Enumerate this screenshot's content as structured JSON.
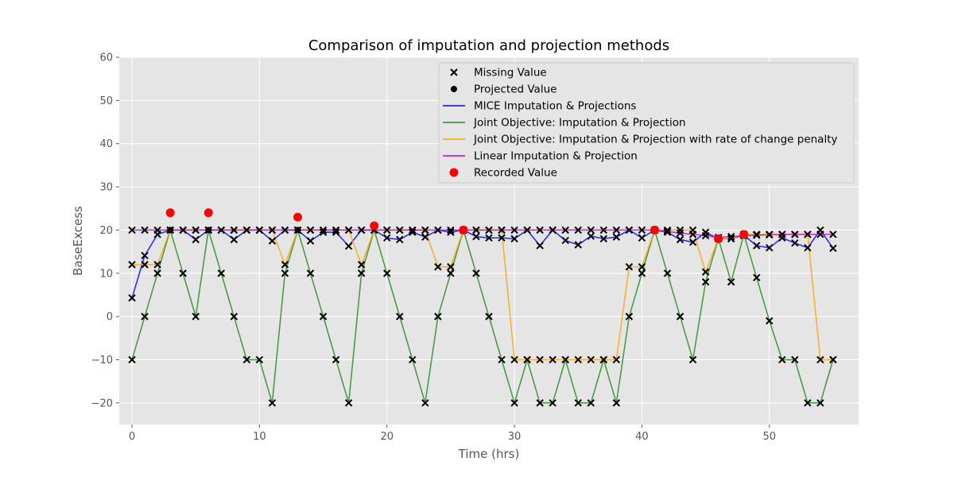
{
  "chart_data": {
    "type": "line",
    "title": "Comparison of imputation and projection methods",
    "xlabel": "Time (hrs)",
    "ylabel": "BaseExcess",
    "xlim": [
      -1,
      57
    ],
    "ylim": [
      -25,
      60
    ],
    "xticks": [
      0,
      10,
      20,
      30,
      40,
      50
    ],
    "yticks": [
      -20,
      -10,
      0,
      10,
      20,
      30,
      40,
      50,
      60
    ],
    "x": [
      0,
      1,
      2,
      3,
      4,
      5,
      6,
      7,
      8,
      9,
      10,
      11,
      12,
      13,
      14,
      15,
      16,
      17,
      18,
      19,
      20,
      21,
      22,
      23,
      24,
      25,
      26,
      27,
      28,
      29,
      30,
      31,
      32,
      33,
      34,
      35,
      36,
      37,
      38,
      39,
      40,
      41,
      42,
      43,
      44,
      45,
      46,
      47,
      48,
      49,
      50,
      51,
      52,
      53,
      54,
      55
    ],
    "series": [
      {
        "name": "MICE Imputation & Projections",
        "color": "#0000ff",
        "values": [
          4.3,
          14.1,
          19.0,
          20.0,
          20.0,
          17.8,
          20.0,
          20.0,
          17.8,
          20.0,
          20.0,
          17.5,
          20.0,
          20.0,
          17.5,
          19.5,
          19.5,
          16.3,
          20.0,
          20.0,
          18.2,
          17.8,
          19.5,
          18.4,
          20.0,
          19.5,
          20.0,
          18.5,
          18.2,
          18.2,
          18.0,
          20.0,
          16.4,
          20.0,
          17.6,
          16.6,
          18.6,
          18.0,
          18.4,
          20.0,
          18.2,
          20.0,
          19.5,
          17.8,
          17.2,
          19.5,
          18.0,
          18.0,
          18.8,
          16.4,
          15.9,
          18.2,
          17.0,
          15.9,
          20.0,
          15.8
        ]
      },
      {
        "name": "Joint Objective: Imputation & Projection",
        "color": "#228b22",
        "values": [
          -10,
          0,
          10,
          20,
          10,
          0,
          20,
          10,
          0,
          -10,
          -10,
          -20,
          10,
          20,
          10,
          0,
          -10,
          -20,
          10,
          20,
          10,
          0,
          -10,
          -20,
          0,
          10,
          20,
          10,
          0,
          -10,
          -20,
          -10,
          -20,
          -20,
          -10,
          -20,
          -20,
          -10,
          -20,
          0,
          10,
          20,
          10,
          0,
          -10,
          8,
          18,
          8,
          19,
          9,
          -1,
          -10,
          -10,
          -20,
          -20,
          -10
        ]
      },
      {
        "name": "Joint Objective: Imputation & Projection with rate of change penalty",
        "color": "#ffa500",
        "values": [
          12,
          12,
          12,
          20,
          20,
          20,
          20,
          20,
          20,
          20,
          20,
          20,
          12,
          20,
          20,
          20,
          20,
          20,
          12,
          20,
          20,
          20,
          20,
          20,
          11.5,
          11.5,
          20,
          20,
          20,
          20,
          -10,
          -10,
          -10,
          -10,
          -10,
          -10,
          -10,
          -10,
          -10,
          11.5,
          11.5,
          20,
          20,
          20,
          20,
          10.3,
          18,
          18,
          19,
          19,
          19,
          19,
          19,
          19,
          -10,
          -10
        ]
      },
      {
        "name": "Linear Imputation & Projection",
        "color": "#cc00cc",
        "values": [
          20.0,
          20.0,
          20.0,
          20.0,
          20.0,
          20.0,
          20.0,
          20.0,
          20.0,
          20.0,
          20.0,
          20.0,
          20.0,
          20.0,
          20.0,
          20.0,
          20.0,
          20.0,
          20.0,
          20.0,
          20.0,
          20.0,
          20.0,
          20.0,
          20.0,
          20.0,
          20.0,
          20.0,
          20.0,
          20.0,
          20.0,
          20.0,
          20.0,
          20.0,
          20.0,
          20.0,
          20.0,
          20.0,
          20.0,
          20.0,
          20.0,
          20.0,
          19.7,
          19.3,
          19.0,
          18.7,
          18.3,
          18.5,
          18.7,
          18.8,
          18.9,
          19.0,
          19.0,
          19.0,
          19.0,
          19.0
        ]
      }
    ],
    "missing_values": {
      "name": "Missing Value",
      "marker": "x",
      "color": "#000000",
      "x": [
        0,
        0,
        0,
        0,
        1,
        1,
        1,
        1,
        2,
        2,
        2,
        2,
        3,
        3,
        3,
        3,
        4,
        4,
        4,
        4,
        5,
        5,
        5,
        5,
        6,
        6,
        6,
        6,
        7,
        7,
        7,
        7,
        8,
        8,
        8,
        8,
        9,
        9,
        9,
        9,
        10,
        10,
        10,
        10,
        11,
        11,
        11,
        11,
        12,
        12,
        12,
        12,
        13,
        13,
        13,
        13,
        14,
        14,
        14,
        14,
        15,
        15,
        15,
        15,
        16,
        16,
        16,
        16,
        17,
        17,
        17,
        17,
        18,
        18,
        18,
        18,
        19,
        19,
        19,
        19,
        20,
        20,
        20,
        20,
        21,
        21,
        21,
        21,
        22,
        22,
        22,
        22,
        23,
        23,
        23,
        23,
        24,
        24,
        24,
        24,
        25,
        25,
        25,
        25,
        26,
        26,
        26,
        26,
        27,
        27,
        27,
        27,
        28,
        28,
        28,
        28,
        29,
        29,
        29,
        29,
        30,
        30,
        30,
        30,
        31,
        31,
        31,
        31,
        32,
        32,
        32,
        32,
        33,
        33,
        33,
        33,
        34,
        34,
        34,
        34,
        35,
        35,
        35,
        35,
        36,
        36,
        36,
        36,
        37,
        37,
        37,
        37,
        38,
        38,
        38,
        38,
        39,
        39,
        39,
        39,
        40,
        40,
        40,
        40,
        41,
        41,
        41,
        41,
        42,
        42,
        42,
        42,
        43,
        43,
        43,
        43,
        44,
        44,
        44,
        44,
        45,
        45,
        45,
        45,
        46,
        46,
        46,
        46,
        47,
        47,
        47,
        47,
        48,
        48,
        48,
        48,
        49,
        49,
        49,
        49,
        50,
        50,
        50,
        50,
        51,
        51,
        51,
        51,
        52,
        52,
        52,
        52,
        53,
        53,
        53,
        53,
        54,
        54,
        54,
        54,
        55,
        55,
        55,
        55
      ],
      "y": [
        4.3,
        -10,
        12,
        20,
        14.1,
        0,
        12,
        20,
        19.0,
        10,
        12,
        20,
        20.0,
        20,
        20,
        20,
        20.0,
        10,
        20,
        20,
        17.8,
        0,
        20,
        20,
        20.0,
        20,
        20,
        20,
        20.0,
        10,
        20,
        20,
        17.8,
        0,
        20,
        20,
        20.0,
        -10,
        20,
        20,
        20.0,
        -10,
        20,
        20,
        17.5,
        -20,
        20,
        20,
        20.0,
        10,
        12,
        20,
        20.0,
        20,
        20,
        20,
        17.5,
        10,
        20,
        20,
        19.5,
        0,
        20,
        20,
        19.5,
        -10,
        20,
        20,
        16.3,
        -20,
        20,
        20,
        20.0,
        10,
        12,
        20,
        20.0,
        20,
        20,
        20,
        18.2,
        10,
        20,
        20,
        17.8,
        0,
        20,
        20,
        19.5,
        -10,
        20,
        20,
        18.4,
        -20,
        20,
        20,
        20.0,
        0,
        11.5,
        20,
        19.5,
        10,
        11.5,
        20,
        20.0,
        20,
        20,
        20,
        18.5,
        10,
        20,
        20,
        18.2,
        0,
        20,
        20,
        18.2,
        -10,
        20,
        20,
        18.0,
        -20,
        -10,
        20,
        20.0,
        -10,
        -10,
        20,
        16.4,
        -20,
        -10,
        20,
        20.0,
        -20,
        -10,
        20,
        17.6,
        -10,
        -10,
        20,
        16.6,
        -20,
        -10,
        20,
        18.6,
        -20,
        -10,
        20,
        18.0,
        -10,
        -10,
        20,
        18.4,
        -20,
        -10,
        20,
        20.0,
        0,
        11.5,
        20,
        18.2,
        10,
        11.5,
        20,
        20.0,
        20,
        20,
        20,
        19.5,
        10,
        20,
        19.7,
        17.8,
        0,
        20,
        19.3,
        17.2,
        -10,
        20,
        19.0,
        19.5,
        8,
        10.3,
        18.7,
        18.0,
        18,
        18,
        18.3,
        18.0,
        8,
        18,
        18.5,
        18.8,
        19,
        19,
        18.7,
        16.4,
        9,
        19,
        18.8,
        15.9,
        -1,
        19,
        18.9,
        18.2,
        -10,
        19,
        19.0,
        17.0,
        -10,
        19,
        19.0,
        15.9,
        -20,
        19,
        19.0,
        20.0,
        -20,
        -10,
        19.0,
        15.8,
        -10,
        -10,
        19.0
      ]
    },
    "projected_values": {
      "name": "Projected Value",
      "marker": "o",
      "color": "#000000",
      "x": [
        3,
        6,
        13
      ],
      "y": [
        20,
        20,
        20
      ]
    },
    "recorded_values": {
      "name": "Recorded Value",
      "marker": "o",
      "color": "#ff0000",
      "x": [
        3,
        6,
        13,
        19,
        26,
        41,
        46,
        48
      ],
      "y": [
        24,
        24,
        23,
        21,
        20,
        20,
        18,
        19
      ]
    },
    "legend": {
      "placement": "top-right",
      "order": [
        "Missing Value",
        "Projected Value",
        "MICE Imputation & Projections",
        "Joint Objective: Imputation & Projection",
        "Joint Objective: Imputation & Projection with rate of change penalty",
        "Linear Imputation & Projection",
        "Recorded Value"
      ]
    },
    "grid": true,
    "background": "#e5e5e5"
  }
}
